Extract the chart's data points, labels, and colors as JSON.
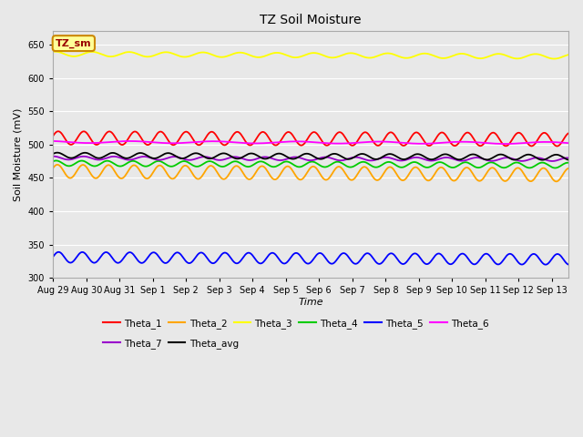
{
  "title": "TZ Soil Moisture",
  "xlabel": "Time",
  "ylabel": "Soil Moisture (mV)",
  "ylim": [
    300,
    670
  ],
  "yticks": [
    300,
    350,
    400,
    450,
    500,
    550,
    600,
    650
  ],
  "fig_bg_color": "#e8e8e8",
  "plot_bg_color": "#e8e8e8",
  "grid_color": "#ffffff",
  "num_days": 15.5,
  "num_points": 500,
  "series_order": [
    "Theta_1",
    "Theta_2",
    "Theta_3",
    "Theta_4",
    "Theta_5",
    "Theta_6",
    "Theta_7",
    "Theta_avg"
  ],
  "series": {
    "Theta_1": {
      "color": "#ff0000",
      "base": 510,
      "amp": 10,
      "freq": 1.3,
      "phase": 0.3,
      "trend": -0.15
    },
    "Theta_2": {
      "color": "#ffa500",
      "base": 460,
      "amp": 10,
      "freq": 1.3,
      "phase": 0.5,
      "trend": -0.35
    },
    "Theta_3": {
      "color": "#ffff00",
      "base": 636,
      "amp": 3.5,
      "freq": 0.9,
      "phase": 1.2,
      "trend": -0.25
    },
    "Theta_4": {
      "color": "#00cc00",
      "base": 472,
      "amp": 4,
      "freq": 1.3,
      "phase": 0.8,
      "trend": -0.2
    },
    "Theta_5": {
      "color": "#0000ff",
      "base": 331,
      "amp": 8,
      "freq": 1.4,
      "phase": 0.1,
      "trend": -0.2
    },
    "Theta_6": {
      "color": "#ff00ff",
      "base": 504,
      "amp": 1.5,
      "freq": 0.4,
      "phase": 2.0,
      "trend": -0.1
    },
    "Theta_7": {
      "color": "#9900cc",
      "base": 480,
      "amp": 2.5,
      "freq": 1.1,
      "phase": 1.5,
      "trend": -0.15
    },
    "Theta_avg": {
      "color": "#000000",
      "base": 484,
      "amp": 4,
      "freq": 1.2,
      "phase": 0.6,
      "trend": -0.2
    }
  },
  "xtick_labels": [
    "Aug 29",
    "Aug 30",
    "Aug 31",
    "Sep 1",
    "Sep 2",
    "Sep 3",
    "Sep 4",
    "Sep 5",
    "Sep 6",
    "Sep 7",
    "Sep 8",
    "Sep 9",
    "Sep 10",
    "Sep 11",
    "Sep 12",
    "Sep 13"
  ],
  "legend_label": "TZ_sm",
  "legend_bg": "#ffff99",
  "legend_border": "#cc8800",
  "legend_row1": [
    "Theta_1",
    "Theta_2",
    "Theta_3",
    "Theta_4",
    "Theta_5",
    "Theta_6"
  ],
  "legend_row2": [
    "Theta_7",
    "Theta_avg"
  ]
}
